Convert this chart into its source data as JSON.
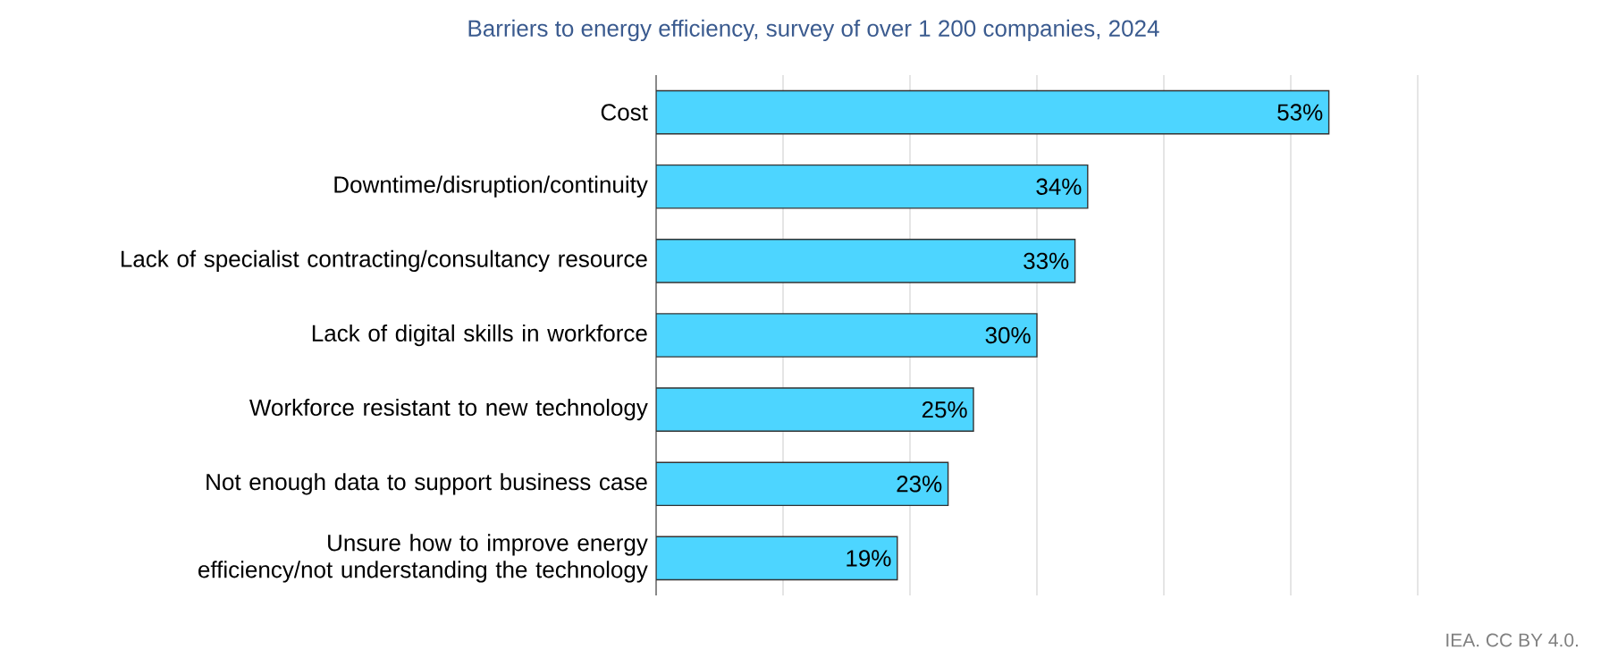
{
  "chart_data": {
    "type": "bar",
    "orientation": "horizontal",
    "title": "Barriers to energy efficiency, survey of over 1 200 companies, 2024",
    "categories": [
      "Cost",
      "Downtime/disruption/continuity",
      "Lack of specialist contracting/consultancy resource",
      "Lack of digital skills in workforce",
      "Workforce resistant to new technology",
      "Not enough data to support business case",
      "Unsure how to improve energy efficiency/not understanding the technology"
    ],
    "values": [
      53,
      34,
      33,
      30,
      25,
      23,
      19
    ],
    "value_labels": [
      "53%",
      "34%",
      "33%",
      "30%",
      "25%",
      "23%",
      "19%"
    ],
    "color": "#4dd5ff",
    "xlim": [
      0,
      60
    ],
    "xticks": [
      {
        "value": 0,
        "label": null
      },
      {
        "value": 10,
        "label": null
      },
      {
        "value": 20,
        "label": null
      },
      {
        "value": 30,
        "label": null
      },
      {
        "value": 40,
        "label": null
      },
      {
        "value": 50,
        "label": null
      },
      {
        "value": 60,
        "label": null
      }
    ],
    "grid": "x",
    "tick_labels": "y",
    "annotations": [
      "IEA. CC BY 4.0."
    ]
  }
}
